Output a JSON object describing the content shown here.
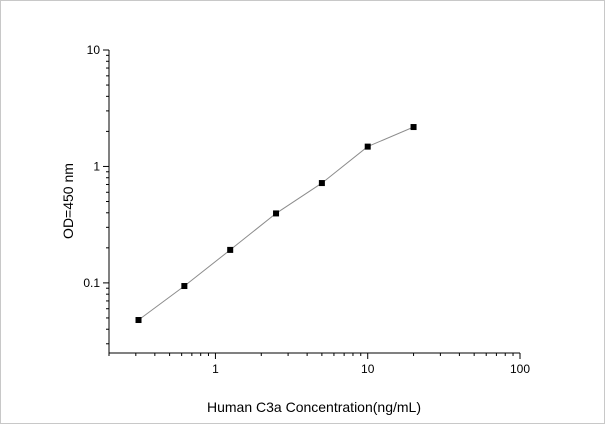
{
  "chart_data": {
    "type": "line",
    "xlabel": "Human C3a Concentration(ng/mL)",
    "ylabel": "OD=450 nm",
    "x_scale": "log",
    "y_scale": "log",
    "xlim": [
      0.2,
      100
    ],
    "ylim": [
      0.025,
      10
    ],
    "x_ticks": [
      1,
      10,
      100
    ],
    "x_tick_labels": [
      "1",
      "10",
      "100"
    ],
    "y_ticks": [
      0.1,
      1,
      10
    ],
    "y_tick_labels": [
      "0.1",
      "1",
      "10"
    ],
    "grid": false,
    "legend": "none",
    "series": [
      {
        "x": [
          0.3125,
          0.625,
          1.25,
          2.5,
          5,
          10,
          20
        ],
        "y": [
          0.048,
          0.094,
          0.192,
          0.395,
          0.72,
          1.48,
          2.18
        ]
      }
    ],
    "colors": {
      "line": "#8c8c8c",
      "marker": "#000000",
      "axis": "#000000"
    }
  }
}
